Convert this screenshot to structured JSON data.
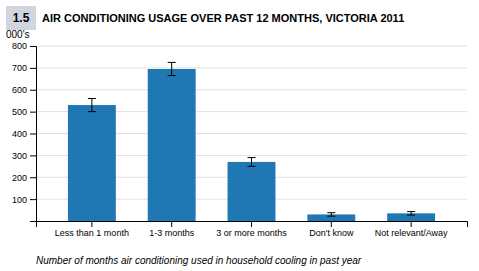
{
  "chart_data": {
    "type": "bar",
    "title": "AIR CONDITIONING USAGE OVER PAST 12 MONTHS, VICTORIA  2011",
    "annotations": [
      "1.5"
    ],
    "ylabel": "000's",
    "xlabel": "Number of months air conditioning used in household cooling in past year",
    "categories": [
      "Less than 1 month",
      "1-3 months",
      "3 or more months",
      "Don't know",
      "Not relevant/Away"
    ],
    "values": [
      530,
      695,
      270,
      30,
      35
    ],
    "errors": [
      30,
      30,
      20,
      8,
      8
    ],
    "ylim": [
      0,
      800
    ],
    "yticks": [
      100,
      200,
      300,
      400,
      500,
      600,
      700,
      800
    ],
    "grid": true
  }
}
